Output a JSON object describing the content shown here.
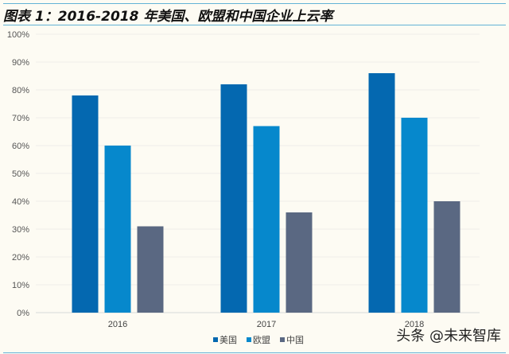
{
  "chart_data": {
    "type": "bar",
    "title": "图表 1：2016-2018 年美国、欧盟和中国企业上云率",
    "categories": [
      "2016",
      "2017",
      "2018"
    ],
    "series": [
      {
        "name": "美国",
        "values": [
          78,
          82,
          86
        ],
        "color": "#0468b0"
      },
      {
        "name": "欧盟",
        "values": [
          60,
          67,
          70
        ],
        "color": "#0688cc"
      },
      {
        "name": "中国",
        "values": [
          31,
          36,
          40
        ],
        "color": "#5a6882"
      }
    ],
    "ylim": [
      0,
      100
    ],
    "yticks": [
      "0%",
      "10%",
      "20%",
      "30%",
      "40%",
      "50%",
      "60%",
      "70%",
      "80%",
      "90%",
      "100%"
    ],
    "grid": true,
    "legend": "bottom"
  },
  "watermark": "头条 @未来智库"
}
